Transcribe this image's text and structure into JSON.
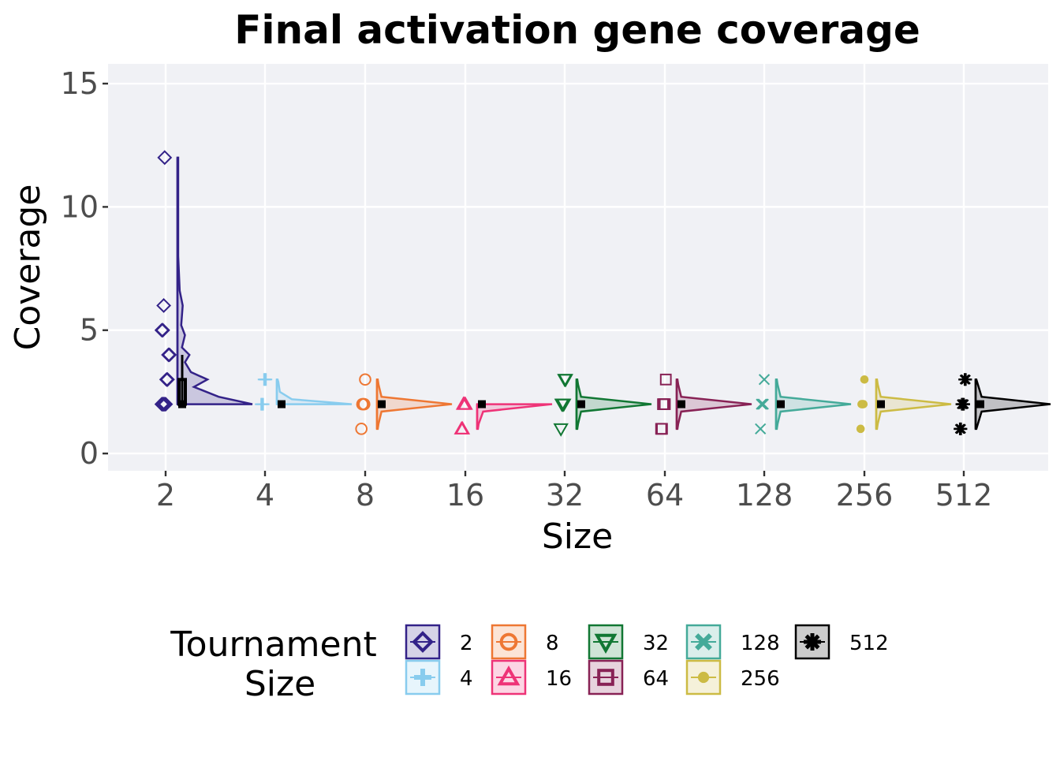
{
  "chart_data": {
    "type": "violin",
    "title": "Final activation gene coverage",
    "xlabel": "Size",
    "ylabel": "Coverage",
    "categories": [
      "2",
      "4",
      "8",
      "16",
      "32",
      "64",
      "128",
      "256",
      "512"
    ],
    "ylim": [
      -0.7,
      15.8
    ],
    "yticks": [
      0,
      5,
      10,
      15
    ],
    "grid": true,
    "legend": {
      "title_line1": "Tournament",
      "title_line2": "Size",
      "placement": "bottom",
      "entries": [
        "2",
        "4",
        "8",
        "16",
        "32",
        "64",
        "128",
        "256",
        "512"
      ]
    },
    "series": [
      {
        "name": "2",
        "color": "#332288",
        "marker": "diamond",
        "median": 2,
        "q1": 2,
        "q3": 3,
        "whisker_low": 2,
        "whisker_high": 4,
        "range": [
          2,
          12
        ],
        "points": [
          2,
          2,
          2,
          2,
          2,
          3,
          3,
          4,
          4,
          5,
          5,
          6,
          12
        ],
        "density": [
          [
            2,
            1.0
          ],
          [
            2.3,
            0.55
          ],
          [
            2.7,
            0.22
          ],
          [
            3.0,
            0.4
          ],
          [
            3.3,
            0.18
          ],
          [
            3.7,
            0.1
          ],
          [
            4.0,
            0.16
          ],
          [
            4.3,
            0.06
          ],
          [
            4.8,
            0.1
          ],
          [
            5.2,
            0.05
          ],
          [
            6.0,
            0.07
          ],
          [
            6.6,
            0.03
          ],
          [
            8,
            0.01
          ],
          [
            12,
            0.01
          ]
        ]
      },
      {
        "name": "4",
        "color": "#88CCEE",
        "marker": "plus",
        "median": 2,
        "q1": 2,
        "q3": 2,
        "whisker_low": 2,
        "whisker_high": 2,
        "range": [
          2,
          3
        ],
        "points": [
          2,
          2,
          2,
          3,
          3,
          3
        ],
        "density": [
          [
            2,
            1.0
          ],
          [
            2.2,
            0.2
          ],
          [
            2.5,
            0.04
          ],
          [
            2.9,
            0.02
          ],
          [
            3,
            0.01
          ]
        ]
      },
      {
        "name": "8",
        "color": "#EE7733",
        "marker": "circle",
        "median": 2,
        "q1": 2,
        "q3": 2,
        "whisker_low": 2,
        "whisker_high": 2,
        "range": [
          1,
          3
        ],
        "points": [
          1,
          2,
          2,
          2,
          3
        ],
        "density": [
          [
            1,
            0.01
          ],
          [
            1.2,
            0.02
          ],
          [
            1.7,
            0.06
          ],
          [
            2,
            1.0
          ],
          [
            2.3,
            0.06
          ],
          [
            2.8,
            0.02
          ],
          [
            3,
            0.01
          ]
        ]
      },
      {
        "name": "16",
        "color": "#EE3377",
        "marker": "triangle",
        "median": 2,
        "q1": 2,
        "q3": 2,
        "whisker_low": 2,
        "whisker_high": 2,
        "range": [
          1,
          2
        ],
        "points": [
          1,
          1,
          2,
          2,
          2
        ],
        "density": [
          [
            1,
            0.01
          ],
          [
            1.2,
            0.02
          ],
          [
            1.7,
            0.08
          ],
          [
            2,
            1.0
          ]
        ]
      },
      {
        "name": "32",
        "color": "#117733",
        "marker": "triangle-down",
        "median": 2,
        "q1": 2,
        "q3": 2,
        "whisker_low": 2,
        "whisker_high": 2,
        "range": [
          1,
          3
        ],
        "points": [
          1,
          2,
          2,
          2,
          3,
          3
        ],
        "density": [
          [
            1,
            0.01
          ],
          [
            1.2,
            0.02
          ],
          [
            1.7,
            0.06
          ],
          [
            2,
            1.0
          ],
          [
            2.3,
            0.06
          ],
          [
            2.8,
            0.02
          ],
          [
            3,
            0.01
          ]
        ]
      },
      {
        "name": "64",
        "color": "#882255",
        "marker": "square",
        "median": 2,
        "q1": 2,
        "q3": 2,
        "whisker_low": 2,
        "whisker_high": 2,
        "range": [
          1,
          3
        ],
        "points": [
          1,
          1,
          2,
          2,
          2,
          3
        ],
        "density": [
          [
            1,
            0.01
          ],
          [
            1.2,
            0.02
          ],
          [
            1.7,
            0.06
          ],
          [
            2,
            1.0
          ],
          [
            2.3,
            0.06
          ],
          [
            2.8,
            0.02
          ],
          [
            3,
            0.01
          ]
        ]
      },
      {
        "name": "128",
        "color": "#44AA99",
        "marker": "cross",
        "median": 2,
        "q1": 2,
        "q3": 2,
        "whisker_low": 2,
        "whisker_high": 2,
        "range": [
          1,
          3
        ],
        "points": [
          1,
          2,
          2,
          2,
          3
        ],
        "density": [
          [
            1,
            0.01
          ],
          [
            1.2,
            0.02
          ],
          [
            1.7,
            0.06
          ],
          [
            2,
            1.0
          ],
          [
            2.3,
            0.06
          ],
          [
            2.8,
            0.02
          ],
          [
            3,
            0.01
          ]
        ]
      },
      {
        "name": "256",
        "color": "#CCBB44",
        "marker": "dot",
        "median": 2,
        "q1": 2,
        "q3": 2,
        "whisker_low": 2,
        "whisker_high": 2,
        "range": [
          1,
          3
        ],
        "points": [
          1,
          2,
          2,
          2,
          3
        ],
        "density": [
          [
            1,
            0.01
          ],
          [
            1.2,
            0.02
          ],
          [
            1.7,
            0.06
          ],
          [
            2,
            1.0
          ],
          [
            2.3,
            0.06
          ],
          [
            2.8,
            0.02
          ],
          [
            3,
            0.01
          ]
        ]
      },
      {
        "name": "512",
        "color": "#000000",
        "marker": "asterisk",
        "median": 2,
        "q1": 2,
        "q3": 2,
        "whisker_low": 2,
        "whisker_high": 2,
        "range": [
          1,
          3
        ],
        "points": [
          1,
          1,
          2,
          2,
          2,
          3,
          3
        ],
        "density": [
          [
            1,
            0.01
          ],
          [
            1.2,
            0.03
          ],
          [
            1.7,
            0.08
          ],
          [
            2,
            1.0
          ],
          [
            2.3,
            0.08
          ],
          [
            2.8,
            0.03
          ],
          [
            3,
            0.01
          ]
        ]
      }
    ]
  }
}
